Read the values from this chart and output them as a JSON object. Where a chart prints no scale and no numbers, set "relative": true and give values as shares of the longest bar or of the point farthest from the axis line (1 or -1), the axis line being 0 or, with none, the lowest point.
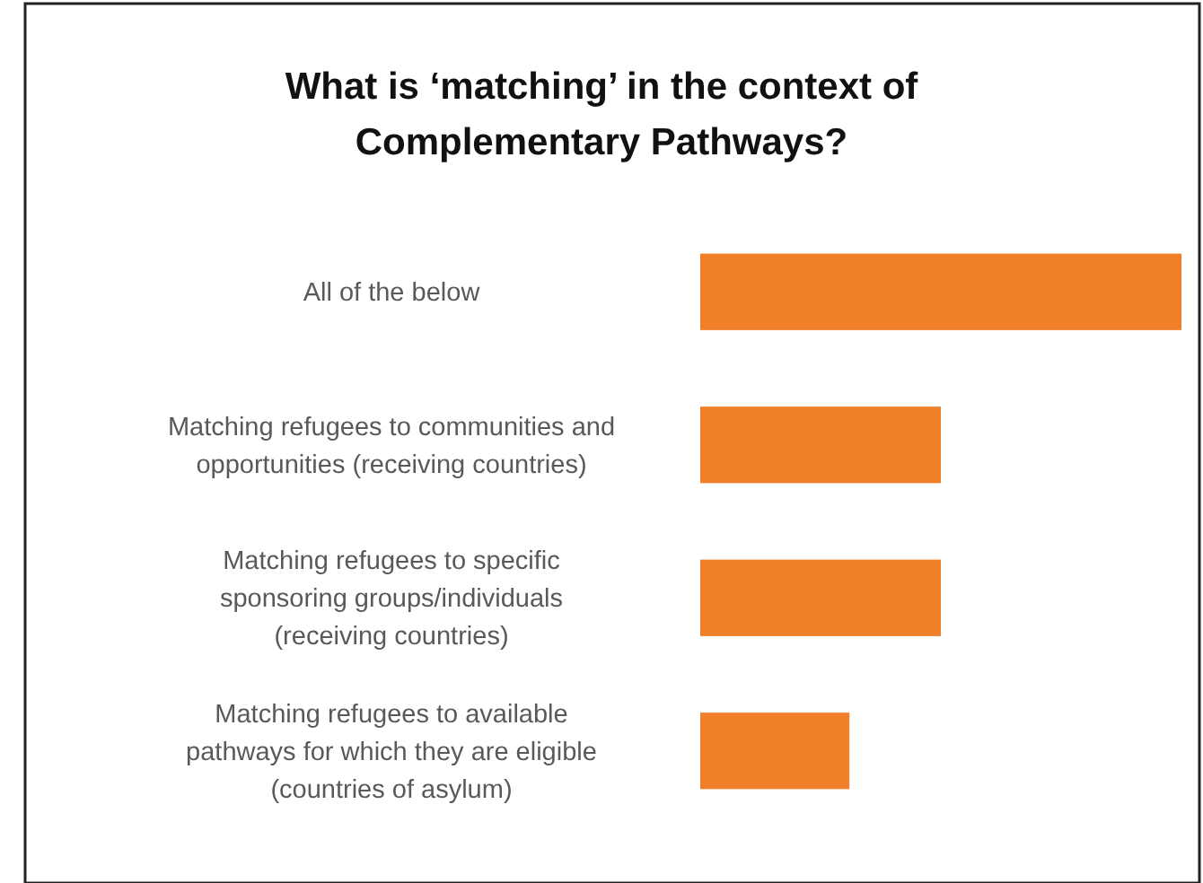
{
  "chart_data": {
    "type": "bar",
    "orientation": "horizontal",
    "relative": true,
    "title": "What is ‘matching’ in the context of Complementary Pathways?",
    "categories": [
      "All of the below",
      "Matching refugees to communities and opportunities (receiving countries)",
      "Matching refugees to specific sponsoring groups/individuals (receiving countries)",
      "Matching refugees to available pathways for which they are eligible (countries of asylum)"
    ],
    "values": [
      1,
      0.5,
      0.5,
      0.31
    ],
    "color": "#f07f2a"
  }
}
